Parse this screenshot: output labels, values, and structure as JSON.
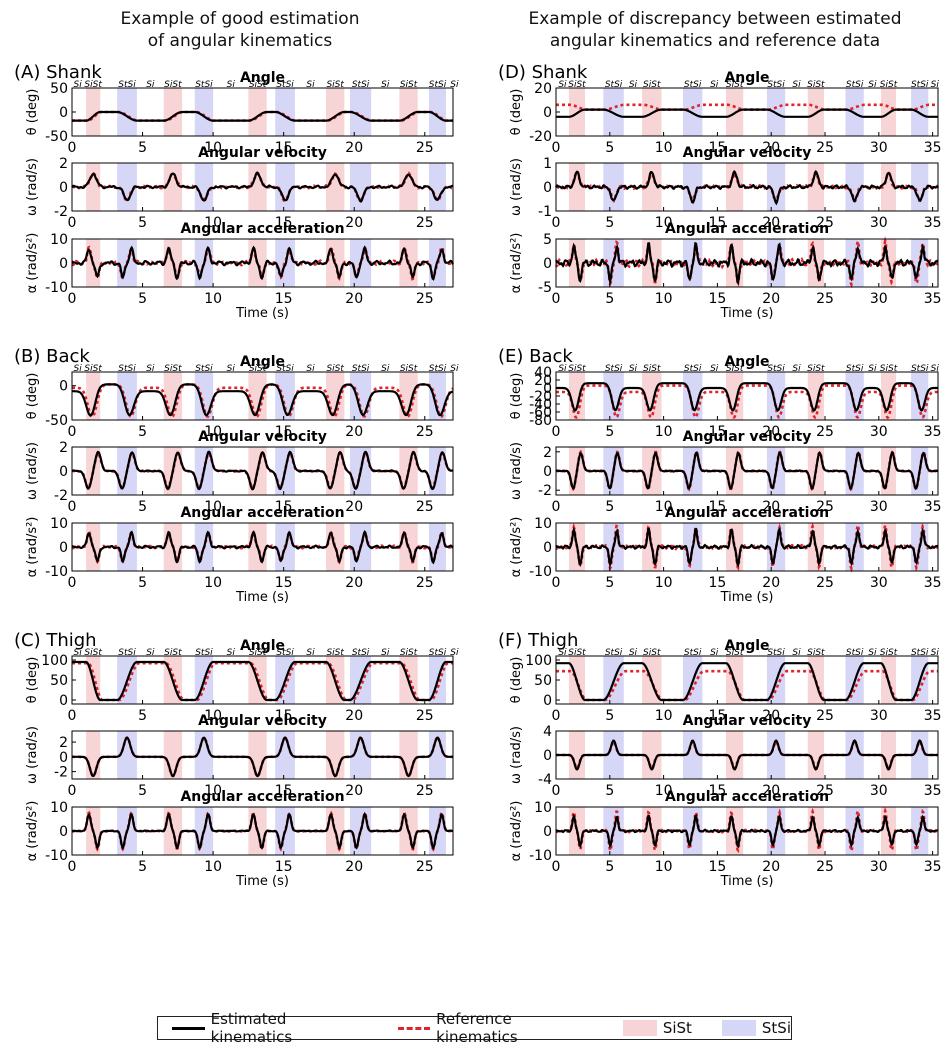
{
  "colors": {
    "estimated": "#000000",
    "reference": "#e0242c",
    "sist": "#f7d4d6",
    "stsi": "#d6d6f7"
  },
  "columns": [
    {
      "title_l1": "Example of good estimation",
      "title_l2": "of angular kinematics"
    },
    {
      "title_l1": "Example of discrepancy between estimated",
      "title_l2": "angular kinematics and reference data"
    }
  ],
  "legend": {
    "estimated": "Estimated kinematics",
    "reference": "Reference kinematics",
    "sist": "SiSt",
    "stsi": "StSi"
  },
  "chart_data": [
    {
      "panel": "(A) Shank",
      "type": "line",
      "xlabel": "Time (s)",
      "xlim": [
        0,
        27
      ],
      "xticks": [
        0,
        5,
        10,
        15,
        20,
        25
      ],
      "sist_intervals": [
        [
          1.0,
          2.0
        ],
        [
          6.5,
          7.8
        ],
        [
          12.5,
          13.8
        ],
        [
          18.0,
          19.3
        ],
        [
          23.2,
          24.5
        ]
      ],
      "stsi_intervals": [
        [
          3.2,
          4.6
        ],
        [
          8.7,
          10.0
        ],
        [
          14.4,
          15.8
        ],
        [
          19.7,
          21.2
        ],
        [
          25.3,
          26.5
        ]
      ],
      "phase_labels": [
        "Si",
        "SiSt",
        "StSi",
        "Si",
        "SiSt",
        "StSi",
        "Si",
        "SiSt",
        "StSi",
        "Si",
        "SiSt",
        "StSi",
        "Si",
        "SiSt",
        "StSi",
        "Si"
      ],
      "subplots": [
        {
          "title": "Angle",
          "ylabel": "θ (deg)",
          "ylim": [
            -50,
            50
          ],
          "yticks": [
            -50,
            0,
            50
          ],
          "kind": "angle",
          "sit": -18,
          "stand": 0,
          "ref_sit": -18,
          "ref_stand": 0,
          "lag": 0.1
        },
        {
          "title": "Angular velocity",
          "ylabel": "ω (rad/s)",
          "ylim": [
            -2,
            2
          ],
          "yticks": [
            -2,
            0,
            2
          ],
          "kind": "vel",
          "amp": 1.1,
          "ref_amp": 1.1,
          "noise": 0.12
        },
        {
          "title": "Angular acceleration",
          "ylabel": "α (rad/s²)",
          "ylim": [
            -10,
            10
          ],
          "yticks": [
            -10,
            0,
            10
          ],
          "kind": "acc",
          "amp": 6,
          "ref_amp": 6,
          "noise": 1.0
        }
      ]
    },
    {
      "panel": "(B) Back",
      "type": "line",
      "xlabel": "Time (s)",
      "xlim": [
        0,
        27
      ],
      "xticks": [
        0,
        5,
        10,
        15,
        20,
        25
      ],
      "sist_intervals": [
        [
          1.0,
          2.0
        ],
        [
          6.5,
          7.8
        ],
        [
          12.5,
          13.8
        ],
        [
          18.0,
          19.3
        ],
        [
          23.2,
          24.5
        ]
      ],
      "stsi_intervals": [
        [
          3.2,
          4.6
        ],
        [
          8.7,
          10.0
        ],
        [
          14.4,
          15.8
        ],
        [
          19.7,
          21.2
        ],
        [
          25.3,
          26.5
        ]
      ],
      "phase_labels": [
        "Si",
        "SiSt",
        "StSi",
        "Si",
        "SiSt",
        "StSi",
        "Si",
        "SiSt",
        "StSi",
        "Si",
        "SiSt",
        "StSi",
        "Si",
        "SiSt",
        "StSi",
        "Si"
      ],
      "subplots": [
        {
          "title": "Angle",
          "ylabel": "θ (deg)",
          "ylim": [
            -50,
            20
          ],
          "yticks": [
            -50,
            0
          ],
          "kind": "back",
          "sit": -8,
          "stand": 2,
          "ref_sit": -3,
          "ref_stand": 2,
          "dip": -38,
          "lag": 0.1
        },
        {
          "title": "Angular velocity",
          "ylabel": "ω (rad/s)",
          "ylim": [
            -2,
            2
          ],
          "yticks": [
            -2,
            0,
            2
          ],
          "kind": "vel2",
          "amp": 1.5,
          "ref_amp": 1.4,
          "noise": 0.05
        },
        {
          "title": "Angular acceleration",
          "ylabel": "α (rad/s²)",
          "ylim": [
            -10,
            10
          ],
          "yticks": [
            -10,
            0,
            10
          ],
          "kind": "acc",
          "amp": 6,
          "ref_amp": 6,
          "noise": 0.6
        }
      ]
    },
    {
      "panel": "(C) Thigh",
      "type": "line",
      "xlabel": "Time (s)",
      "xlim": [
        0,
        27
      ],
      "xticks": [
        0,
        5,
        10,
        15,
        20,
        25
      ],
      "sist_intervals": [
        [
          1.0,
          2.0
        ],
        [
          6.5,
          7.8
        ],
        [
          12.5,
          13.8
        ],
        [
          18.0,
          19.3
        ],
        [
          23.2,
          24.5
        ]
      ],
      "stsi_intervals": [
        [
          3.2,
          4.6
        ],
        [
          8.7,
          10.0
        ],
        [
          14.4,
          15.8
        ],
        [
          19.7,
          21.2
        ],
        [
          25.3,
          26.5
        ]
      ],
      "phase_labels": [
        "Si",
        "SiSt",
        "StSi",
        "Si",
        "SiSt",
        "StSi",
        "Si",
        "SiSt",
        "StSi",
        "Si",
        "SiSt",
        "StSi",
        "Si",
        "SiSt",
        "StSi",
        "Si"
      ],
      "subplots": [
        {
          "title": "Angle",
          "ylabel": "θ (deg)",
          "ylim": [
            -10,
            110
          ],
          "yticks": [
            0,
            50,
            100
          ],
          "kind": "angle",
          "sit": 95,
          "stand": 0,
          "ref_sit": 92,
          "ref_stand": 0,
          "lag": 0.15,
          "invert": true
        },
        {
          "title": "Angular velocity",
          "ylabel": "ω (rad/s)",
          "ylim": [
            -3,
            3.5
          ],
          "yticks": [
            -2,
            0,
            2
          ],
          "kind": "vel",
          "amp": -2.6,
          "ref_amp": -2.6,
          "noise": 0.0
        },
        {
          "title": "Angular acceleration",
          "ylabel": "α (rad/s²)",
          "ylim": [
            -10,
            10
          ],
          "yticks": [
            -10,
            0,
            10
          ],
          "kind": "acc",
          "amp": 7,
          "ref_amp": 7.5,
          "noise": 0.2
        }
      ]
    },
    {
      "panel": "(D) Shank",
      "type": "line",
      "xlabel": "Time (s)",
      "xlim": [
        0,
        35.5
      ],
      "xticks": [
        0,
        5,
        10,
        15,
        20,
        25,
        30,
        35
      ],
      "sist_intervals": [
        [
          1.2,
          2.7
        ],
        [
          8.0,
          9.8
        ],
        [
          15.8,
          17.4
        ],
        [
          23.4,
          24.9
        ],
        [
          30.2,
          31.6
        ]
      ],
      "stsi_intervals": [
        [
          4.4,
          6.3
        ],
        [
          11.8,
          13.6
        ],
        [
          19.6,
          21.3
        ],
        [
          26.9,
          28.6
        ],
        [
          33.0,
          34.6
        ]
      ],
      "phase_labels": [
        "Si",
        "SiSt",
        "StSi",
        "Si",
        "SiSt",
        "StSi",
        "Si",
        "SiSt",
        "StSi",
        "Si",
        "SiSt",
        "StSi",
        "Si",
        "SiSt",
        "StSi",
        "Si"
      ],
      "subplots": [
        {
          "title": "Angle",
          "ylabel": "θ (deg)",
          "ylim": [
            -20,
            20
          ],
          "yticks": [
            -20,
            0,
            20
          ],
          "kind": "angle",
          "sit": -4,
          "stand": 2,
          "ref_sit": 6,
          "ref_stand": 2,
          "lag": 0.1
        },
        {
          "title": "Angular velocity",
          "ylabel": "ω (rad/s)",
          "ylim": [
            -1,
            1
          ],
          "yticks": [
            -1,
            0,
            1
          ],
          "kind": "vel",
          "amp": 0.6,
          "ref_amp": 0.55,
          "noise": 0.08
        },
        {
          "title": "Angular acceleration",
          "ylabel": "α (rad/s²)",
          "ylim": [
            -5,
            5
          ],
          "yticks": [
            -5,
            0,
            5
          ],
          "kind": "acc",
          "amp": 3.5,
          "ref_amp": 4,
          "noise": 0.8
        }
      ]
    },
    {
      "panel": "(E) Back",
      "type": "line",
      "xlabel": "Time (s)",
      "xlim": [
        0,
        35.5
      ],
      "xticks": [
        0,
        5,
        10,
        15,
        20,
        25,
        30,
        35
      ],
      "sist_intervals": [
        [
          1.2,
          2.7
        ],
        [
          8.0,
          9.8
        ],
        [
          15.8,
          17.4
        ],
        [
          23.4,
          24.9
        ],
        [
          30.2,
          31.6
        ]
      ],
      "stsi_intervals": [
        [
          4.4,
          6.3
        ],
        [
          11.8,
          13.6
        ],
        [
          19.6,
          21.3
        ],
        [
          26.9,
          28.6
        ],
        [
          33.0,
          34.6
        ]
      ],
      "phase_labels": [
        "Si",
        "SiSt",
        "StSi",
        "Si",
        "SiSt",
        "StSi",
        "Si",
        "SiSt",
        "StSi",
        "Si",
        "SiSt",
        "StSi",
        "Si",
        "SiSt",
        "StSi",
        "Si"
      ],
      "subplots": [
        {
          "title": "Angle",
          "ylabel": "θ (deg)",
          "ylim": [
            -80,
            40
          ],
          "yticks": [
            -80,
            -60,
            -40,
            -20,
            0,
            20,
            40
          ],
          "kind": "back",
          "sit": 0,
          "stand": 12,
          "ref_sit": -10,
          "ref_stand": 6,
          "dip": -60,
          "lag": 0.1
        },
        {
          "title": "Angular velocity",
          "ylabel": "ω (rad/s)",
          "ylim": [
            -2.5,
            2.5
          ],
          "yticks": [
            -2,
            0,
            2
          ],
          "kind": "vel2",
          "amp": 1.8,
          "ref_amp": 1.9,
          "noise": 0.05
        },
        {
          "title": "Angular acceleration",
          "ylabel": "α (rad/s²)",
          "ylim": [
            -10,
            10
          ],
          "yticks": [
            -10,
            0,
            10
          ],
          "kind": "acc",
          "amp": 7,
          "ref_amp": 8.5,
          "noise": 0.8
        }
      ]
    },
    {
      "panel": "(F) Thigh",
      "type": "line",
      "xlabel": "Time (s)",
      "xlim": [
        0,
        35.5
      ],
      "xticks": [
        0,
        5,
        10,
        15,
        20,
        25,
        30,
        35
      ],
      "sist_intervals": [
        [
          1.2,
          2.7
        ],
        [
          8.0,
          9.8
        ],
        [
          15.8,
          17.4
        ],
        [
          23.4,
          24.9
        ],
        [
          30.2,
          31.6
        ]
      ],
      "stsi_intervals": [
        [
          4.4,
          6.3
        ],
        [
          11.8,
          13.6
        ],
        [
          19.6,
          21.3
        ],
        [
          26.9,
          28.6
        ],
        [
          33.0,
          34.6
        ]
      ],
      "phase_labels": [
        "Si",
        "SiSt",
        "StSi",
        "Si",
        "SiSt",
        "StSi",
        "Si",
        "SiSt",
        "StSi",
        "Si",
        "SiSt",
        "StSi",
        "Si",
        "SiSt",
        "StSi",
        "Si"
      ],
      "subplots": [
        {
          "title": "Angle",
          "ylabel": "θ (deg)",
          "ylim": [
            -10,
            110
          ],
          "yticks": [
            0,
            50,
            100
          ],
          "kind": "angle",
          "sit": 92,
          "stand": 0,
          "ref_sit": 72,
          "ref_stand": 0,
          "lag": 0.15,
          "invert": true
        },
        {
          "title": "Angular velocity",
          "ylabel": "ω (rad/s)",
          "ylim": [
            -4,
            4
          ],
          "yticks": [
            -4,
            0,
            4
          ],
          "kind": "vel",
          "amp": -2.4,
          "ref_amp": -2.2,
          "noise": 0.0
        },
        {
          "title": "Angular acceleration",
          "ylabel": "α (rad/s²)",
          "ylim": [
            -10,
            10
          ],
          "yticks": [
            -10,
            0,
            10
          ],
          "kind": "acc",
          "amp": 6,
          "ref_amp": 8,
          "noise": 0.5
        }
      ]
    }
  ]
}
